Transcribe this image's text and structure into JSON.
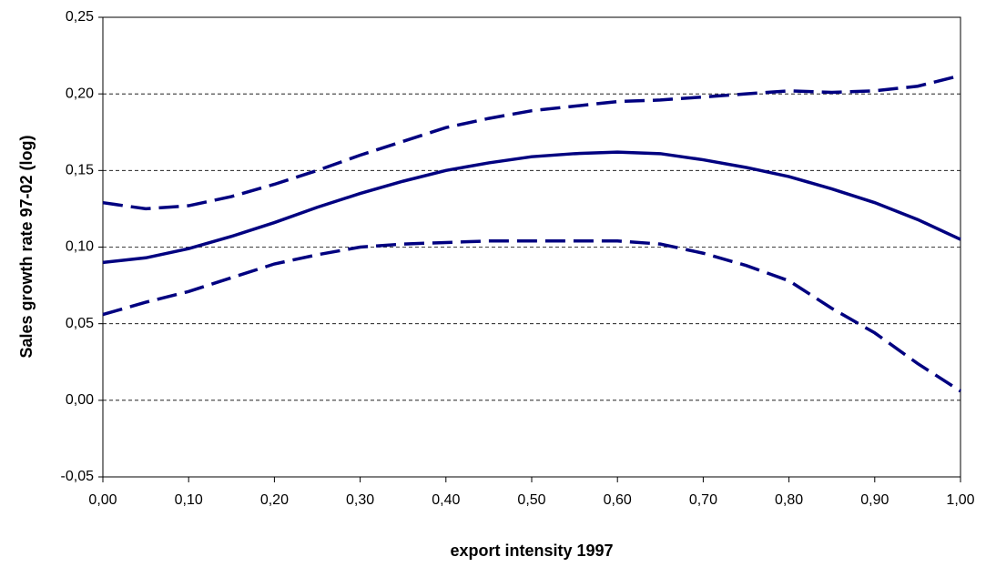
{
  "chart_data": {
    "type": "line",
    "x_label": "export intensity 1997",
    "y_label": "Sales growth rate 97-02 (log)",
    "x": [
      0,
      0.05,
      0.1,
      0.15,
      0.2,
      0.25,
      0.3,
      0.35,
      0.4,
      0.45,
      0.5,
      0.55,
      0.6,
      0.65,
      0.7,
      0.75,
      0.8,
      0.85,
      0.9,
      0.95,
      1
    ],
    "series": [
      {
        "color": "#000080",
        "dashed": true,
        "values": [
          0.129,
          0.125,
          0.127,
          0.133,
          0.141,
          0.15,
          0.16,
          0.169,
          0.178,
          0.184,
          0.189,
          0.192,
          0.195,
          0.196,
          0.198,
          0.2,
          0.202,
          0.201,
          0.202,
          0.205,
          0.212
        ]
      },
      {
        "color": "#000080",
        "dashed": false,
        "values": [
          0.09,
          0.093,
          0.099,
          0.107,
          0.116,
          0.126,
          0.135,
          0.143,
          0.15,
          0.155,
          0.159,
          0.161,
          0.162,
          0.161,
          0.157,
          0.152,
          0.146,
          0.138,
          0.129,
          0.118,
          0.105
        ]
      },
      {
        "color": "#000080",
        "dashed": true,
        "values": [
          0.056,
          0.064,
          0.071,
          0.08,
          0.089,
          0.095,
          0.1,
          0.102,
          0.103,
          0.104,
          0.104,
          0.104,
          0.104,
          0.102,
          0.096,
          0.088,
          0.078,
          0.06,
          0.044,
          0.024,
          0.006
        ]
      }
    ],
    "xlim": [
      0,
      1
    ],
    "xticks": [
      {
        "value": 0,
        "label": "0,00"
      },
      {
        "value": 0.1,
        "label": "0,10"
      },
      {
        "value": 0.2,
        "label": "0,20"
      },
      {
        "value": 0.3,
        "label": "0,30"
      },
      {
        "value": 0.4,
        "label": "0,40"
      },
      {
        "value": 0.5,
        "label": "0,50"
      },
      {
        "value": 0.6,
        "label": "0,60"
      },
      {
        "value": 0.7,
        "label": "0,70"
      },
      {
        "value": 0.8,
        "label": "0,80"
      },
      {
        "value": 0.9,
        "label": "0,90"
      },
      {
        "value": 1,
        "label": "1,00"
      }
    ],
    "ylim": [
      -0.05,
      0.25
    ],
    "yticks": [
      {
        "value": -0.05,
        "label": "-0,05"
      },
      {
        "value": 0,
        "label": "0,00"
      },
      {
        "value": 0.05,
        "label": "0,05"
      },
      {
        "value": 0.1,
        "label": "0,10"
      },
      {
        "value": 0.15,
        "label": "0,15"
      },
      {
        "value": 0.2,
        "label": "0,20"
      },
      {
        "value": 0.25,
        "label": "0,25"
      }
    ],
    "grid": true
  }
}
